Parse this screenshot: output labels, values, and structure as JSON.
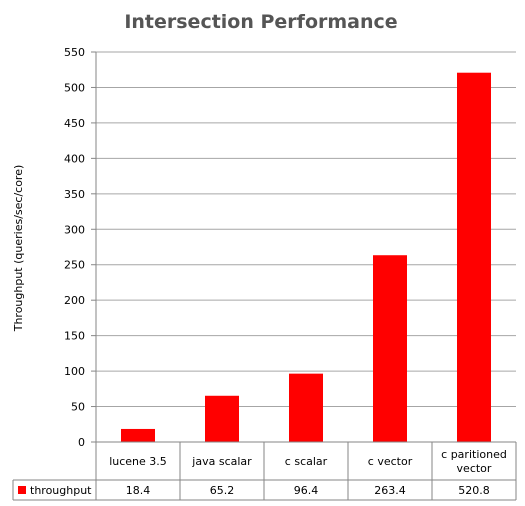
{
  "chart_data": {
    "type": "bar",
    "title": "Intersection Performance",
    "ylabel": "Throughput (queries/sec/core)",
    "xlabel": "",
    "categories": [
      [
        "lucene 3.5"
      ],
      [
        "java scalar"
      ],
      [
        "c scalar"
      ],
      [
        "c vector"
      ],
      [
        "c paritioned",
        "vector"
      ]
    ],
    "series": [
      {
        "name": "throughput",
        "values": [
          18.4,
          65.2,
          96.4,
          263.4,
          520.8
        ],
        "value_labels": [
          "18.4",
          "65.2",
          "96.4",
          "263.4",
          "520.8"
        ],
        "color": "#ff0000"
      }
    ],
    "ylim": [
      0,
      550
    ],
    "yticks": [
      0,
      50,
      100,
      150,
      200,
      250,
      300,
      350,
      400,
      450,
      500,
      550
    ],
    "grid": true,
    "legend": "data-table"
  },
  "colors": {
    "bar": "#ff0000",
    "grid": "#a6a6a6",
    "axis": "#868686",
    "title": "#555555"
  }
}
